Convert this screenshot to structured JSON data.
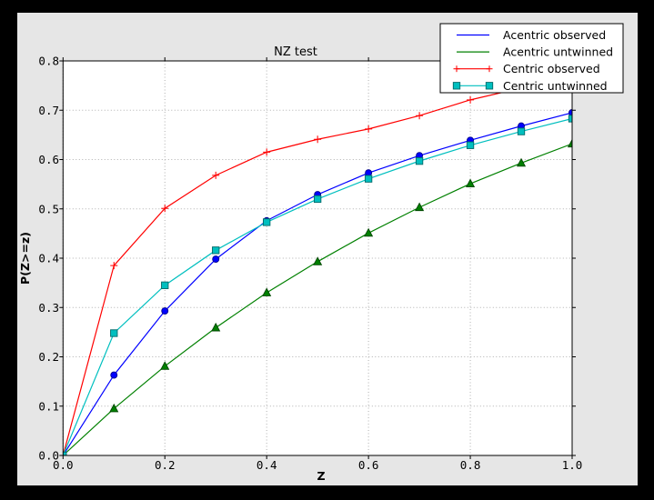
{
  "colors": {
    "canvas_border": "#000000",
    "figure_background": "#e6e6e6",
    "plot_background": "#ffffff",
    "grid": "#b0b0b0",
    "axis": "#000000",
    "text": "#000000"
  },
  "chart_data": {
    "type": "line",
    "title": "NZ test",
    "xlabel": "Z",
    "ylabel": "P(Z>=z)",
    "xlim": [
      0.0,
      1.0
    ],
    "ylim": [
      0.0,
      0.8
    ],
    "xticks": [
      "0.0",
      "0.2",
      "0.4",
      "0.6",
      "0.8",
      "1.0"
    ],
    "yticks": [
      "0.0",
      "0.1",
      "0.2",
      "0.3",
      "0.4",
      "0.5",
      "0.6",
      "0.7",
      "0.8"
    ],
    "grid": true,
    "legend_position": "upper right",
    "x": [
      0.0,
      0.1,
      0.2,
      0.3,
      0.4,
      0.5,
      0.6,
      0.7,
      0.8,
      0.9,
      1.0
    ],
    "series": [
      {
        "name": "Acentric observed",
        "color": "#0000ff",
        "marker": "circle",
        "values": [
          0.0,
          0.163,
          0.293,
          0.398,
          0.476,
          0.529,
          0.573,
          0.608,
          0.639,
          0.668,
          0.695
        ]
      },
      {
        "name": "Acentric untwinned",
        "color": "#008000",
        "marker": "triangle",
        "values": [
          0.0,
          0.095,
          0.181,
          0.259,
          0.33,
          0.393,
          0.451,
          0.503,
          0.551,
          0.593,
          0.632
        ]
      },
      {
        "name": "Centric observed",
        "color": "#ff0000",
        "marker": "plus",
        "values": [
          0.0,
          0.385,
          0.501,
          0.568,
          0.615,
          0.641,
          0.662,
          0.689,
          0.721,
          0.745,
          0.768
        ]
      },
      {
        "name": "Centric untwinned",
        "color": "#00bfbf",
        "marker": "square",
        "values": [
          0.0,
          0.248,
          0.345,
          0.416,
          0.473,
          0.52,
          0.561,
          0.597,
          0.629,
          0.657,
          0.683
        ]
      }
    ]
  }
}
